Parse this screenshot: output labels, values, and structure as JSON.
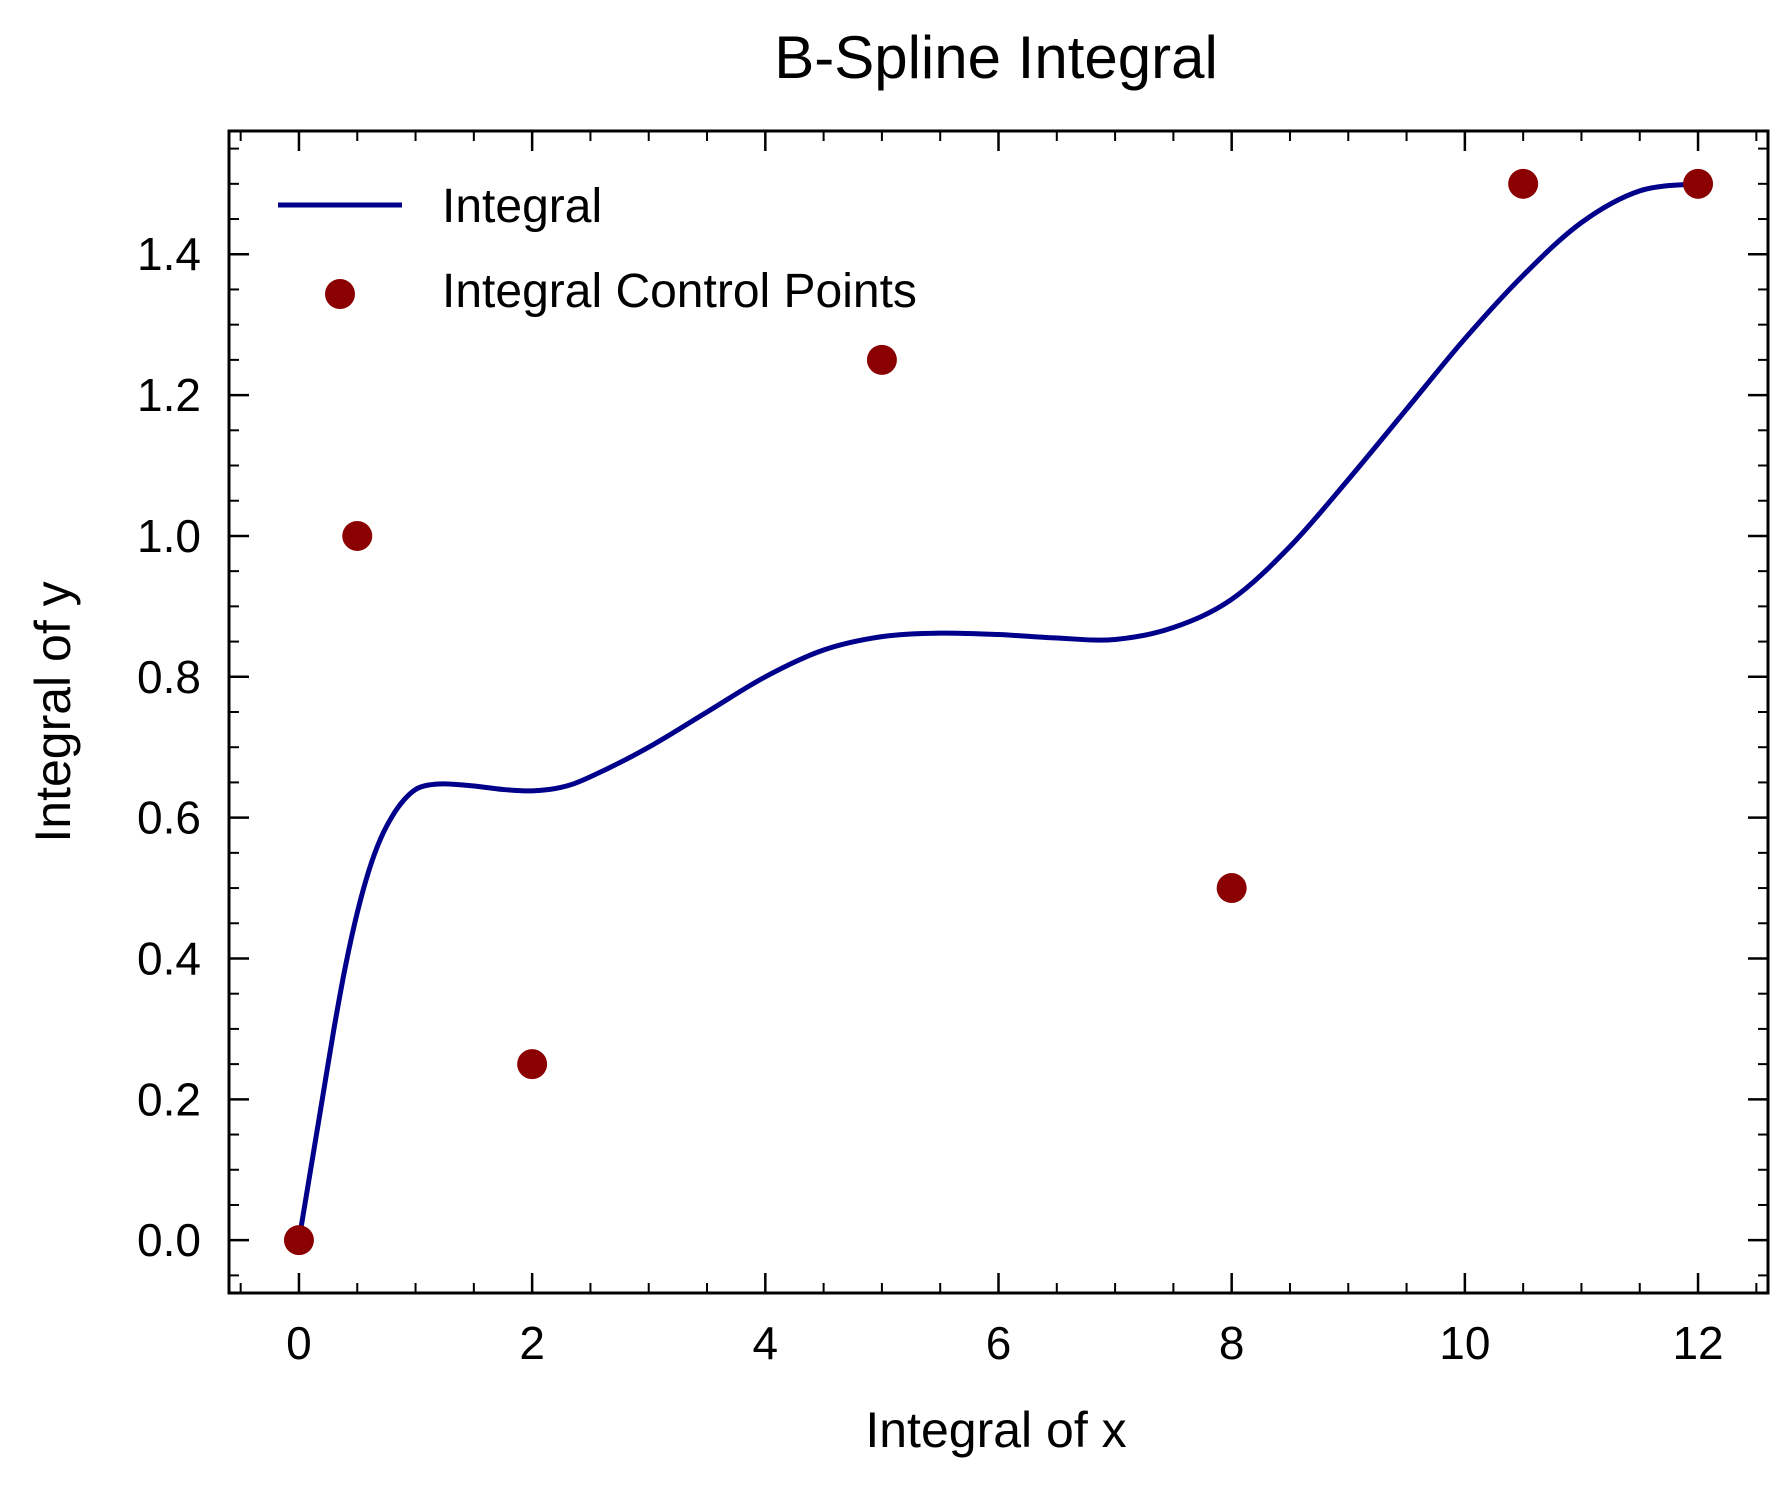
{
  "chart_data": {
    "type": "line",
    "title": "B-Spline Integral",
    "xlabel": "Integral of x",
    "ylabel": "Integral of y",
    "xlim": [
      -0.6,
      12.6
    ],
    "ylim": [
      -0.075,
      1.575
    ],
    "x_ticks": [
      0,
      2,
      4,
      6,
      8,
      10,
      12
    ],
    "x_tick_labels": [
      "0",
      "2",
      "4",
      "6",
      "8",
      "10",
      "12"
    ],
    "y_ticks": [
      0.0,
      0.2,
      0.4,
      0.6,
      0.8,
      1.0,
      1.2,
      1.4
    ],
    "y_tick_labels": [
      "0.0",
      "0.2",
      "0.4",
      "0.6",
      "0.8",
      "1.0",
      "1.2",
      "1.4"
    ],
    "x_minor_step": 0.5,
    "y_minor_step": 0.05,
    "grid": false,
    "legend_position": "top-left",
    "series": [
      {
        "name": "Integral",
        "kind": "line",
        "color": "#00008b",
        "x": [
          0.0,
          0.1,
          0.2,
          0.3,
          0.4,
          0.5,
          0.6,
          0.7,
          0.8,
          0.9,
          1.0,
          1.1,
          1.25,
          1.5,
          1.75,
          2.0,
          2.25,
          2.5,
          3.0,
          3.5,
          4.0,
          4.5,
          5.0,
          5.5,
          6.0,
          6.5,
          7.0,
          7.5,
          8.0,
          8.5,
          9.0,
          9.5,
          10.0,
          10.5,
          11.0,
          11.5,
          12.0
        ],
        "y": [
          0.0,
          0.1,
          0.2,
          0.3,
          0.39,
          0.465,
          0.525,
          0.57,
          0.602,
          0.625,
          0.64,
          0.646,
          0.648,
          0.645,
          0.64,
          0.638,
          0.643,
          0.658,
          0.7,
          0.75,
          0.8,
          0.838,
          0.857,
          0.862,
          0.86,
          0.855,
          0.853,
          0.87,
          0.91,
          0.985,
          1.08,
          1.18,
          1.28,
          1.37,
          1.445,
          1.49,
          1.5
        ]
      },
      {
        "name": "Integral Control Points",
        "kind": "scatter",
        "color": "#8b0000",
        "x": [
          0,
          0.5,
          2,
          5,
          8,
          10.5,
          12
        ],
        "y": [
          0.0,
          1.0,
          0.25,
          1.25,
          0.5,
          1.5,
          1.5
        ]
      }
    ]
  }
}
